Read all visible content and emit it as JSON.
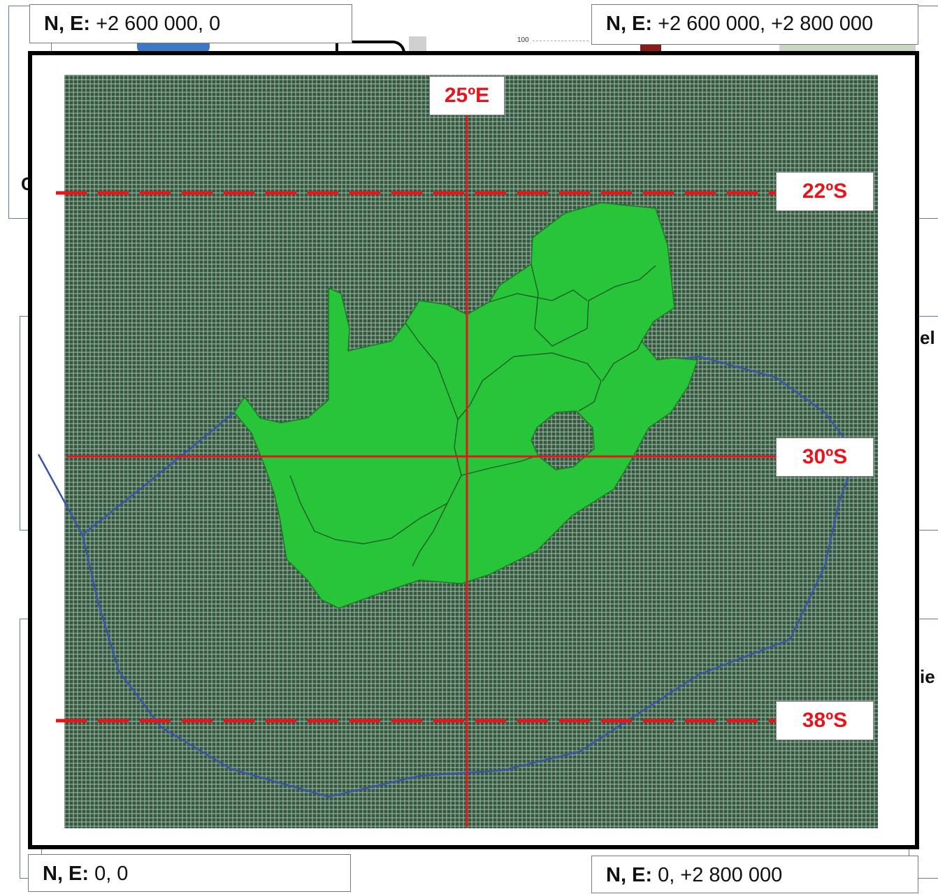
{
  "corners": {
    "top_left": {
      "key": "N, E:",
      "value": "+2 600 000, 0"
    },
    "top_right": {
      "key": "N, E:",
      "value": "+2 600 000, +2 800 000"
    },
    "bottom_left": {
      "key": "N, E:",
      "value": "0, 0"
    },
    "bottom_right": {
      "key": "N, E:",
      "value": "0, +2 800 000"
    }
  },
  "map": {
    "meridian_label": "25ºE",
    "lat_top_label": "22ºS",
    "lat_mid_label": "30ºS",
    "lat_bottom_label": "38ºS"
  },
  "background_fragments": {
    "tick": "100",
    "left_c": "C",
    "right_1": "el",
    "right_2": "ie"
  },
  "colors": {
    "grid": "#2f5a3c",
    "land": "#28c43a",
    "lines": "#e8141c",
    "eez": "#3a55a8"
  }
}
